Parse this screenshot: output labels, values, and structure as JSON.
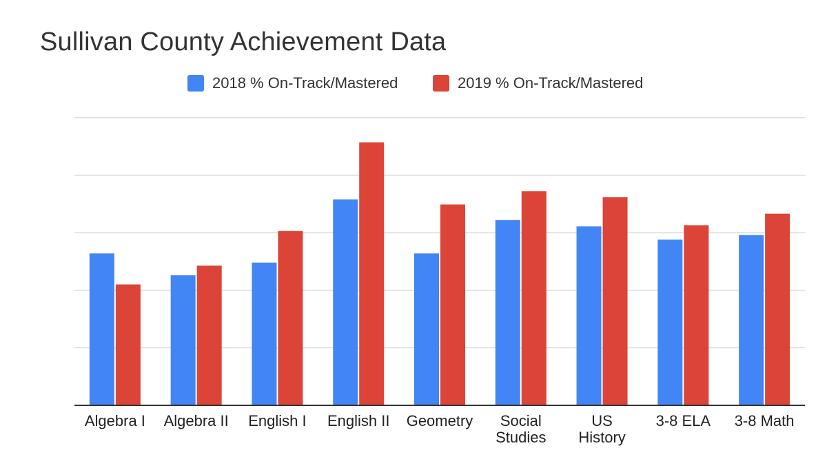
{
  "chart_data": {
    "type": "bar",
    "title": "Sullivan County Achievement Data",
    "categories": [
      "Algebra I",
      "Algebra II",
      "English I",
      "English II",
      "Geometry",
      "Social Studies",
      "US History",
      "3-8 ELA",
      "3-8 Math"
    ],
    "category_lines": [
      [
        "Algebra I"
      ],
      [
        "Algebra II"
      ],
      [
        "English I"
      ],
      [
        "English II"
      ],
      [
        "Geometry"
      ],
      [
        "Social",
        "Studies"
      ],
      [
        "US",
        "History"
      ],
      [
        "3-8 ELA"
      ],
      [
        "3-8 Math"
      ]
    ],
    "series": [
      {
        "name": "2018 % On-Track/Mastered",
        "color": "#4285f4",
        "values": [
          26.4,
          22.6,
          24.8,
          35.8,
          26.4,
          32.2,
          31.1,
          28.8,
          29.6
        ]
      },
      {
        "name": "2019 % On-Track/Mastered",
        "color": "#db4437",
        "values": [
          21.0,
          24.3,
          30.3,
          45.7,
          34.9,
          37.2,
          36.2,
          31.3,
          33.3
        ]
      }
    ],
    "ylim": [
      0,
      50
    ],
    "gridlines": [
      10,
      20,
      30,
      40,
      50
    ],
    "grid": true,
    "y_tick_labels_shown": false,
    "legend_position": "top"
  }
}
